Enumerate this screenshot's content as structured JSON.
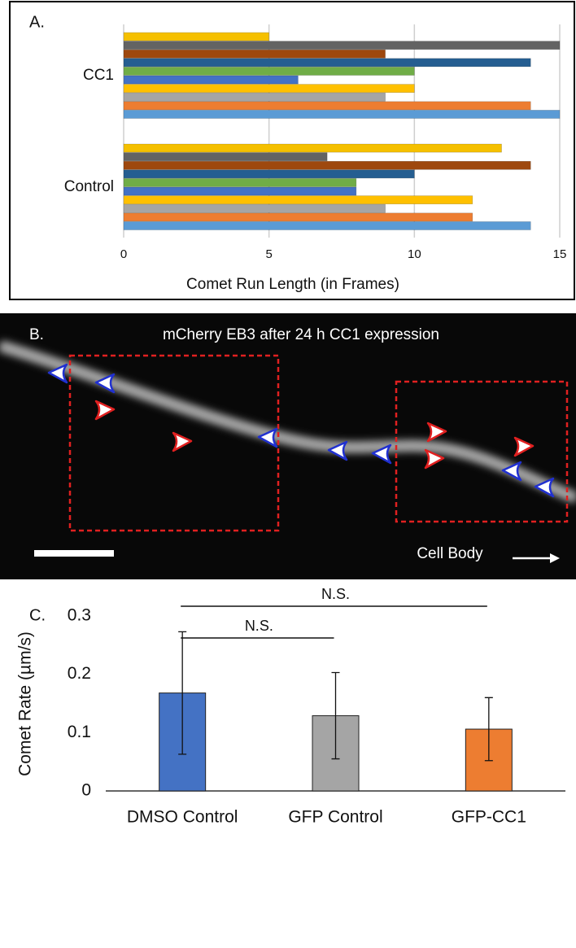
{
  "chart_data": [
    {
      "type": "hbar3d",
      "panel_label": "A.",
      "x_label": "Comet Run Length (in Frames)",
      "categories": [
        "Control",
        "CC1"
      ],
      "series": [
        {
          "color": "#5b9bd5",
          "values": [
            14,
            15
          ]
        },
        {
          "color": "#ed7d31",
          "values": [
            12,
            14
          ]
        },
        {
          "color": "#a5a5a5",
          "values": [
            9,
            9
          ]
        },
        {
          "color": "#ffc000",
          "values": [
            12,
            10
          ]
        },
        {
          "color": "#4472c4",
          "values": [
            8,
            6
          ]
        },
        {
          "color": "#70ad47",
          "values": [
            8,
            10
          ]
        },
        {
          "color": "#255e91",
          "values": [
            10,
            14
          ]
        },
        {
          "color": "#9e480e",
          "values": [
            14,
            9
          ]
        },
        {
          "color": "#636363",
          "values": [
            7,
            15
          ]
        },
        {
          "color": "#f5c000",
          "values": [
            13,
            5
          ]
        }
      ],
      "xlim": [
        0,
        15
      ],
      "xticks": [
        0,
        5,
        10,
        15
      ],
      "grid": true
    },
    {
      "type": "bar",
      "panel_label": "C.",
      "y_label": "Comet Rate (µm/s)",
      "categories": [
        "DMSO Control",
        "GFP Control",
        "GFP-CC1"
      ],
      "values": [
        0.168,
        0.129,
        0.106
      ],
      "errors": [
        0.105,
        0.074,
        0.054
      ],
      "colors": [
        "#4472c4",
        "#a5a5a5",
        "#ed7d31"
      ],
      "ylim": [
        0,
        0.3
      ],
      "yticks": [
        0,
        0.1,
        0.2,
        0.3
      ],
      "grid": false,
      "annotations": [
        "N.S.",
        "N.S."
      ]
    }
  ],
  "image_panel": {
    "label": "B.",
    "title": "mCherry EB3 after 24 h CC1 expression",
    "caption": "Cell Body"
  }
}
